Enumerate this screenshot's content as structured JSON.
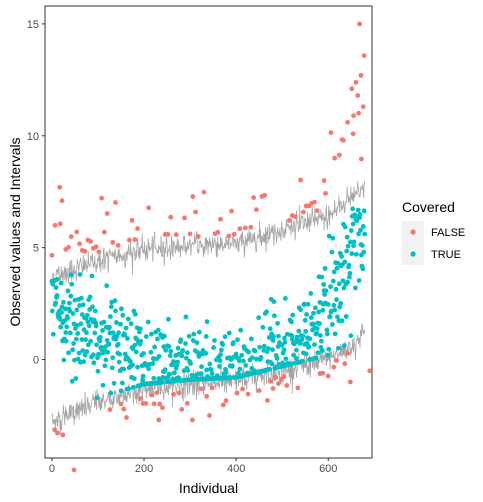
{
  "chart_data": {
    "type": "scatter",
    "xlabel": "Individual",
    "ylabel": "Observed values and Intervals",
    "xlim": [
      -15,
      695
    ],
    "ylim": [
      -4.4,
      15.8
    ],
    "xticks": [
      0,
      200,
      400,
      600
    ],
    "yticks": [
      0,
      5,
      10,
      15
    ],
    "xtick_labels": [
      "0",
      "200",
      "400",
      "600"
    ],
    "ytick_labels": [
      "0",
      "5",
      "10",
      "15"
    ],
    "grid": false,
    "legend": {
      "title": "Covered",
      "position": "right",
      "entries": [
        {
          "label": "FALSE",
          "color": "#F8766D"
        },
        {
          "label": "TRUE",
          "color": "#00BFC4"
        }
      ]
    },
    "n_individuals": 680,
    "interval_color": "#A6A6A6",
    "upper_band_profile": [
      [
        0,
        3.7
      ],
      [
        100,
        4.4
      ],
      [
        200,
        4.9
      ],
      [
        300,
        5.1
      ],
      [
        400,
        5.2
      ],
      [
        500,
        5.8
      ],
      [
        600,
        6.4
      ],
      [
        650,
        7.3
      ],
      [
        680,
        7.8
      ]
    ],
    "lower_band_profile": [
      [
        0,
        -2.8
      ],
      [
        100,
        -1.9
      ],
      [
        200,
        -1.3
      ],
      [
        300,
        -1.1
      ],
      [
        400,
        -1.0
      ],
      [
        500,
        -0.5
      ],
      [
        600,
        0.0
      ],
      [
        650,
        0.6
      ],
      [
        680,
        1.2
      ]
    ],
    "outlier_points": [
      {
        "x": 668,
        "y": 15.0
      },
      {
        "x": 671,
        "y": 12.7
      },
      {
        "x": 651,
        "y": 12.1
      },
      {
        "x": 664,
        "y": 11.8
      },
      {
        "x": 676,
        "y": 11.3
      },
      {
        "x": 655,
        "y": 10.9
      },
      {
        "x": 642,
        "y": 10.6
      },
      {
        "x": 633,
        "y": 9.8
      },
      {
        "x": 614,
        "y": 9.0
      },
      {
        "x": 591,
        "y": 8.0
      },
      {
        "x": 17,
        "y": 7.7
      },
      {
        "x": 22,
        "y": 7.1
      },
      {
        "x": 7,
        "y": 6.0
      },
      {
        "x": 305,
        "y": -2.7
      },
      {
        "x": 232,
        "y": -2.7
      },
      {
        "x": 690,
        "y": -0.5
      }
    ],
    "series": [
      {
        "name": "FALSE",
        "color": "#F8766D",
        "count": 120
      },
      {
        "name": "TRUE",
        "color": "#00BFC4",
        "count": 560
      }
    ]
  }
}
